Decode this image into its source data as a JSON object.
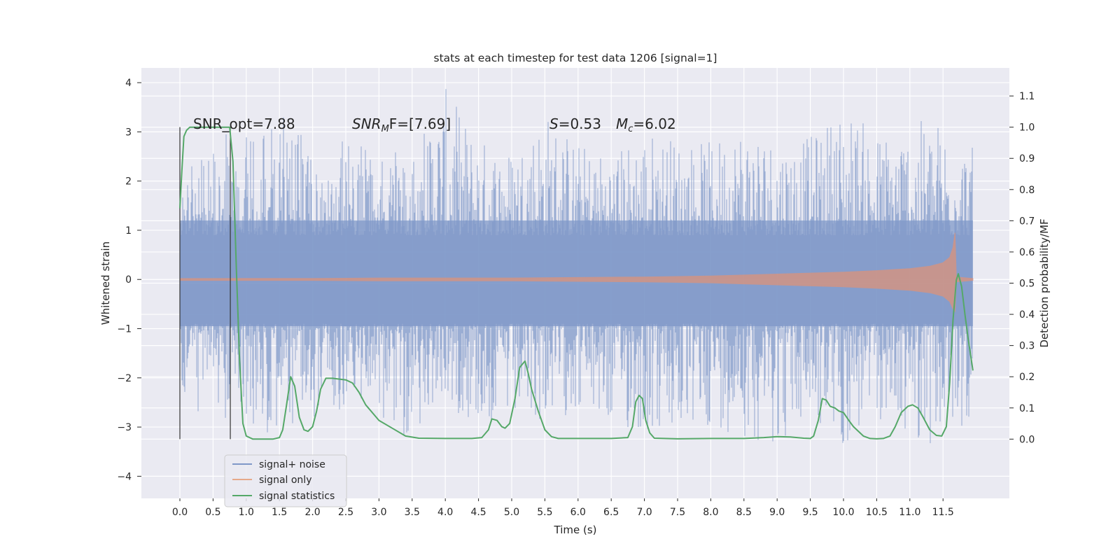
{
  "chart_data": {
    "type": "line",
    "title": "stats at each timestep for test data 1206 [signal=1]",
    "xlabel": "Time (s)",
    "ylabel": "Whitened strain",
    "y2label": "Detection probability/MF",
    "xlim": [
      -0.58,
      12.5
    ],
    "ylim": [
      -4.45,
      4.3
    ],
    "y2lim": [
      -0.19,
      1.19
    ],
    "xticks": [
      0.0,
      0.5,
      1.0,
      1.5,
      2.0,
      2.5,
      3.0,
      3.5,
      4.0,
      4.5,
      5.0,
      5.5,
      6.0,
      6.5,
      7.0,
      7.5,
      8.0,
      8.5,
      9.0,
      9.5,
      10.0,
      10.5,
      11.0,
      11.5
    ],
    "xtick_labels": [
      "0.0",
      "0.5",
      "1.0",
      "1.5",
      "2.0",
      "2.5",
      "3.0",
      "3.5",
      "4.0",
      "4.5",
      "5.0",
      "5.5",
      "6.0",
      "6.5",
      "7.0",
      "7.5",
      "8.0",
      "8.5",
      "9.0",
      "9.5",
      "10.0",
      "10.5",
      "11.0",
      "11.5"
    ],
    "yticks": [
      -4,
      -3,
      -2,
      -1,
      0,
      1,
      2,
      3,
      4
    ],
    "ytick_labels": [
      "−4",
      "−3",
      "−2",
      "−1",
      "0",
      "1",
      "2",
      "3",
      "4"
    ],
    "y2ticks": [
      0.0,
      0.1,
      0.2,
      0.3,
      0.4,
      0.5,
      0.6,
      0.7,
      0.8,
      0.9,
      1.0,
      1.1
    ],
    "y2tick_labels": [
      "0.0",
      "0.1",
      "0.2",
      "0.3",
      "0.4",
      "0.5",
      "0.6",
      "0.7",
      "0.8",
      "0.9",
      "1.0",
      "1.1"
    ],
    "grid": true,
    "legend_position": "lower-left",
    "annotations": {
      "snr_opt": "SNR_opt=7.88",
      "snr_mf_label": "SNR",
      "snr_mf_sub": "M",
      "snr_mf_tail": "F=[7.69]",
      "s_label": "S",
      "s_value": "=0.53",
      "mc_label": "M",
      "mc_sub": "c",
      "mc_value": "=6.02"
    },
    "vlines_x": [
      0.0,
      0.76
    ],
    "series": [
      {
        "name": "signal+ noise",
        "color": "#7f98c8",
        "envelope": {
          "x": [
            0.0,
            0.5,
            1.0,
            1.5,
            2.0,
            2.5,
            3.0,
            3.5,
            4.0,
            4.5,
            5.0,
            5.5,
            6.0,
            6.5,
            7.0,
            7.5,
            8.0,
            8.5,
            9.0,
            9.5,
            10.0,
            10.5,
            11.0,
            11.5,
            11.95
          ],
          "upper": [
            2.4,
            3.0,
            2.9,
            3.4,
            2.7,
            2.9,
            2.5,
            2.8,
            3.9,
            2.9,
            2.7,
            3.5,
            2.8,
            2.6,
            3.1,
            2.9,
            2.8,
            3.3,
            2.9,
            2.9,
            3.6,
            3.0,
            3.2,
            3.3,
            2.7
          ],
          "lower": [
            -2.6,
            -2.8,
            -3.0,
            -3.3,
            -2.9,
            -2.6,
            -2.8,
            -3.3,
            -2.6,
            -3.0,
            -3.1,
            -2.9,
            -2.7,
            -3.1,
            -3.2,
            -3.3,
            -3.0,
            -3.2,
            -3.4,
            -2.9,
            -3.5,
            -2.9,
            -3.2,
            -3.5,
            -2.8
          ]
        }
      },
      {
        "name": "signal only",
        "color": "#dd8452",
        "envelope": {
          "x": [
            0.0,
            1.0,
            2.0,
            3.0,
            4.0,
            5.0,
            6.0,
            7.0,
            7.5,
            8.0,
            8.5,
            9.0,
            9.5,
            10.0,
            10.5,
            11.0,
            11.3,
            11.5,
            11.6,
            11.65,
            11.68,
            11.7,
            11.95
          ],
          "upper": [
            0.02,
            0.02,
            0.02,
            0.03,
            0.03,
            0.03,
            0.04,
            0.05,
            0.06,
            0.07,
            0.09,
            0.11,
            0.13,
            0.15,
            0.18,
            0.22,
            0.27,
            0.34,
            0.45,
            0.65,
            0.95,
            0.05,
            0.02
          ],
          "lower": [
            -0.02,
            -0.02,
            -0.02,
            -0.03,
            -0.03,
            -0.03,
            -0.04,
            -0.05,
            -0.06,
            -0.07,
            -0.09,
            -0.11,
            -0.13,
            -0.15,
            -0.18,
            -0.22,
            -0.27,
            -0.34,
            -0.45,
            -0.6,
            -0.65,
            -0.05,
            -0.02
          ]
        }
      },
      {
        "name": "signal statistics",
        "color": "#55a868",
        "axis": "right",
        "x": [
          0.0,
          0.03,
          0.06,
          0.1,
          0.15,
          0.2,
          0.3,
          0.4,
          0.5,
          0.6,
          0.7,
          0.75,
          0.8,
          0.85,
          0.9,
          0.95,
          1.0,
          1.1,
          1.3,
          1.4,
          1.5,
          1.55,
          1.6,
          1.67,
          1.73,
          1.8,
          1.87,
          1.93,
          2.0,
          2.06,
          2.12,
          2.2,
          2.3,
          2.5,
          2.6,
          2.7,
          2.8,
          3.0,
          3.2,
          3.4,
          3.6,
          4.0,
          4.4,
          4.55,
          4.65,
          4.7,
          4.78,
          4.85,
          4.9,
          4.97,
          5.05,
          5.12,
          5.2,
          5.25,
          5.3,
          5.4,
          5.5,
          5.6,
          5.7,
          6.0,
          6.5,
          6.75,
          6.82,
          6.87,
          6.92,
          6.97,
          7.02,
          7.08,
          7.15,
          7.5,
          8.0,
          8.5,
          8.8,
          9.0,
          9.2,
          9.4,
          9.5,
          9.55,
          9.62,
          9.68,
          9.74,
          9.8,
          9.87,
          9.93,
          10.0,
          10.08,
          10.15,
          10.3,
          10.4,
          10.5,
          10.6,
          10.7,
          10.78,
          10.87,
          10.97,
          11.04,
          11.12,
          11.2,
          11.3,
          11.4,
          11.48,
          11.55,
          11.6,
          11.65,
          11.7,
          11.73,
          11.78,
          11.83,
          11.88,
          11.95
        ],
        "values": [
          0.74,
          0.86,
          0.97,
          0.99,
          1.0,
          1.0,
          1.0,
          1.0,
          1.0,
          1.0,
          1.0,
          1.0,
          0.89,
          0.55,
          0.25,
          0.05,
          0.01,
          0.0,
          0.0,
          0.0,
          0.005,
          0.03,
          0.1,
          0.2,
          0.17,
          0.07,
          0.03,
          0.025,
          0.04,
          0.09,
          0.16,
          0.195,
          0.195,
          0.19,
          0.18,
          0.15,
          0.11,
          0.06,
          0.035,
          0.01,
          0.003,
          0.002,
          0.002,
          0.005,
          0.03,
          0.065,
          0.06,
          0.04,
          0.035,
          0.05,
          0.13,
          0.23,
          0.25,
          0.21,
          0.16,
          0.09,
          0.03,
          0.008,
          0.002,
          0.002,
          0.002,
          0.005,
          0.04,
          0.12,
          0.14,
          0.13,
          0.06,
          0.02,
          0.003,
          0.001,
          0.002,
          0.002,
          0.005,
          0.008,
          0.007,
          0.003,
          0.002,
          0.01,
          0.06,
          0.13,
          0.125,
          0.105,
          0.1,
          0.09,
          0.085,
          0.06,
          0.04,
          0.01,
          0.002,
          0.001,
          0.002,
          0.01,
          0.04,
          0.085,
          0.105,
          0.11,
          0.1,
          0.07,
          0.03,
          0.012,
          0.01,
          0.04,
          0.18,
          0.38,
          0.51,
          0.53,
          0.49,
          0.4,
          0.32,
          0.22
        ]
      }
    ]
  }
}
